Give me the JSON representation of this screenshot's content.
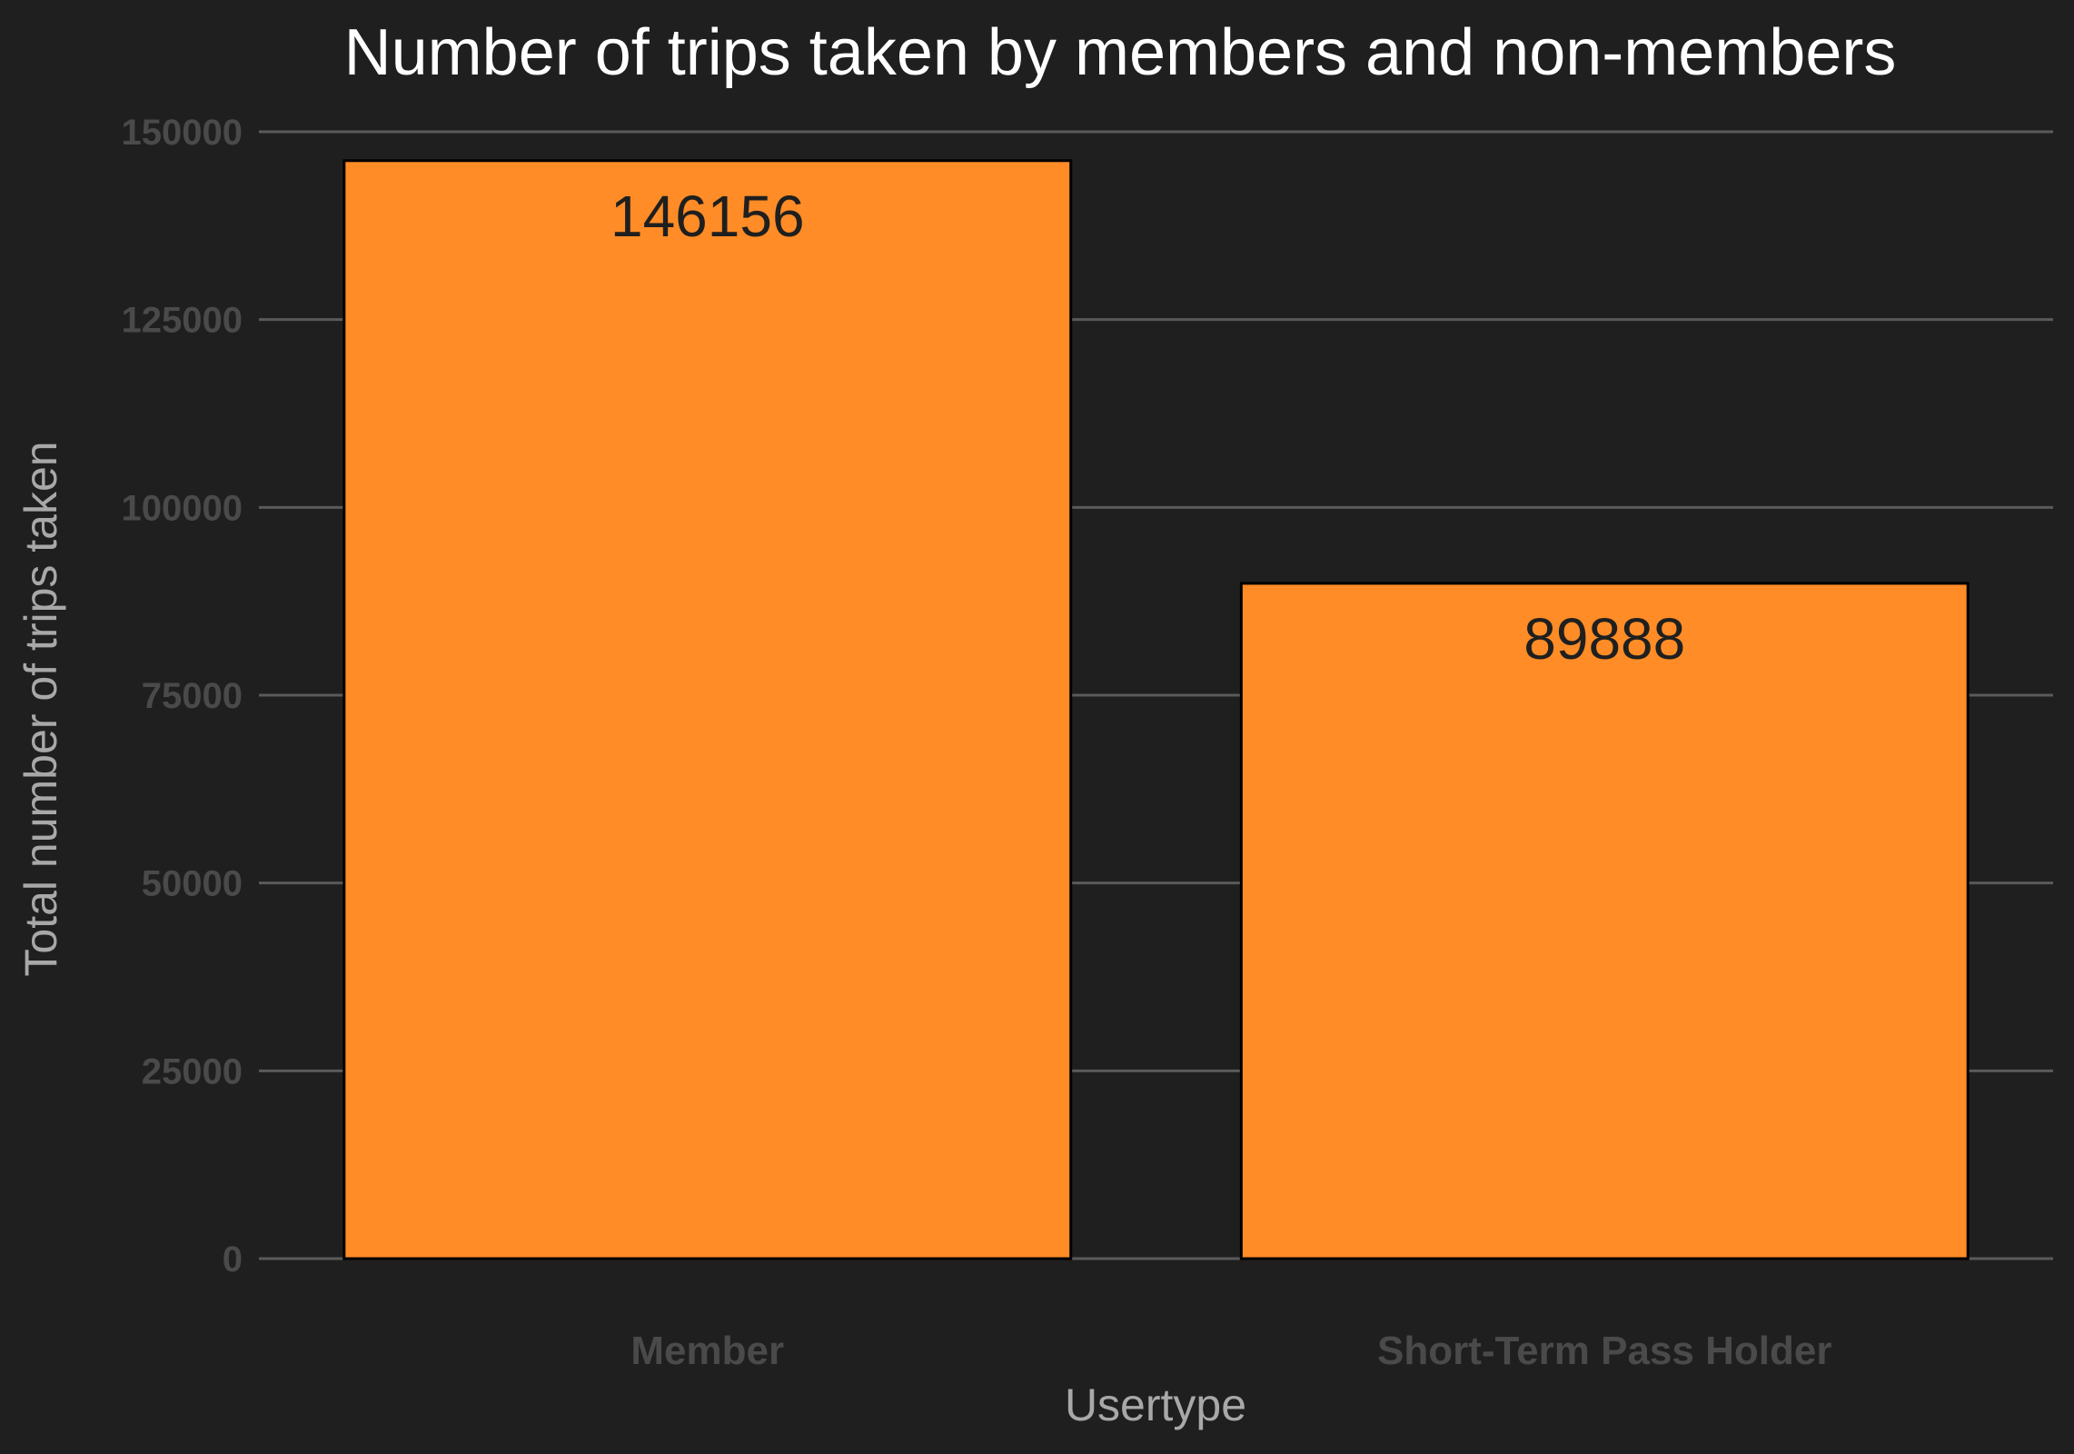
{
  "chart_data": {
    "type": "bar",
    "title": "Number of trips taken by members and non-members",
    "xlabel": "Usertype",
    "ylabel": "Total number of trips taken",
    "categories": [
      "Member",
      "Short-Term Pass Holder"
    ],
    "values": [
      146156,
      89888
    ],
    "data_labels": [
      "146156",
      "89888"
    ],
    "yticks": [
      0,
      25000,
      50000,
      75000,
      100000,
      125000,
      150000
    ],
    "ytick_labels": [
      "0",
      "25000",
      "50000",
      "75000",
      "100000",
      "125000",
      "150000"
    ],
    "ylim": [
      0,
      150000
    ],
    "grid": true,
    "legend": "none",
    "colors": {
      "background": "#1f1f1f",
      "bar_fill": "#ff8c26",
      "bar_outline": "#000000",
      "gridline": "#5a5a5a"
    }
  }
}
